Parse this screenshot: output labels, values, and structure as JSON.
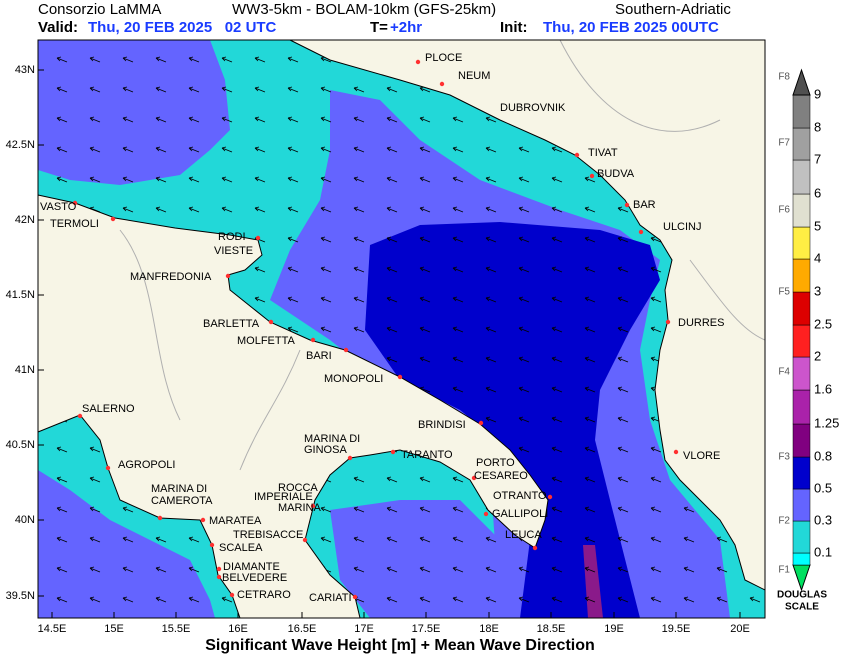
{
  "header": {
    "producer": "Consorzio LaMMA",
    "model": "WW3-5km - BOLAM-10km (GFS-25km)",
    "region": "Southern-Adriatic",
    "valid_label": "Valid:",
    "valid_time": "Thu, 20 FEB 2025   02 UTC",
    "step_label": "T=",
    "step": "+2hr",
    "init_label": "Init:",
    "init_time": "Thu, 20 FEB 2025 00UTC"
  },
  "lat_ticks": [
    "43N",
    "42.5N",
    "42N",
    "41.5N",
    "41N",
    "40.5N",
    "40N",
    "39.5N"
  ],
  "lon_ticks": [
    "14.5E",
    "15E",
    "15.5E",
    "16E",
    "16.5E",
    "17E",
    "17.5E",
    "18E",
    "18.5E",
    "19E",
    "19.5E",
    "20E"
  ],
  "places": [
    "PLOCE",
    "NEUM",
    "DUBROVNIK",
    "TIVAT",
    "BUDVA",
    "BAR",
    "ULCINJ",
    "DURRES",
    "VLORE",
    "VASTO",
    "TERMOLI",
    "RODI",
    "VIESTE",
    "MANFREDONIA",
    "BARLETTA",
    "MOLFETTA",
    "BARI",
    "MONOPOLI",
    "BRINDISI",
    "SALERNO",
    "AGROPOLI",
    "MARINA DI",
    "GINOSA",
    "TARANTO",
    "PORTO",
    "CESAREO",
    "OTRANTO",
    "GALLIPOLI",
    "LEUCA",
    "MARINA DI",
    "CAMEROTA",
    "MARATEA",
    "ROCCA",
    "IMPERIALE",
    "MARINA",
    "TREBISACCE",
    "SCALEA",
    "DIAMANTE",
    "BELVEDERE",
    "CETRARO",
    "CARIATI"
  ],
  "colorbar": {
    "levels": [
      "0.1",
      "0.3",
      "0.5",
      "0.8",
      "1.25",
      "1.6",
      "2",
      "2.5",
      "3",
      "4",
      "5",
      "6",
      "7",
      "8",
      "9"
    ],
    "douglas": [
      "F1",
      "F2",
      "F3",
      "F4",
      "F5",
      "F6",
      "F7",
      "F8"
    ],
    "scale_title": [
      "DOUGLAS",
      "SCALE"
    ]
  },
  "footer": "Significant Wave Height [m] + Mean Wave Direction"
}
